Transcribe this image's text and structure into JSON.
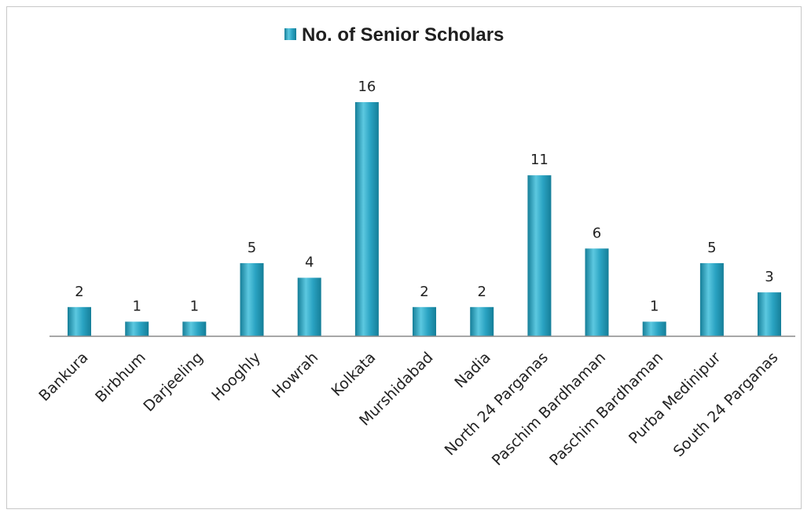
{
  "chart_data": {
    "type": "bar",
    "legend": {
      "label": "No. of Senior Scholars",
      "placement": "top"
    },
    "categories": [
      "Bankura",
      "Birbhum",
      "Darjeeling",
      "Hooghly",
      "Howrah",
      "Kolkata",
      "Murshidabad",
      "Nadia",
      "North 24 Parganas",
      "Paschim Bardhaman",
      "Paschim Bardhaman",
      "Purba Medinipur",
      "South 24 Parganas"
    ],
    "series": [
      {
        "name": "No. of Senior Scholars",
        "values": [
          2,
          1,
          1,
          5,
          4,
          16,
          2,
          2,
          11,
          6,
          1,
          5,
          3
        ]
      }
    ],
    "ylim": [
      0,
      16
    ],
    "grid": false,
    "data_labels": true,
    "colors": {
      "bar_light": "#5cc8e0",
      "bar_mid": "#2aa3c2",
      "bar_dark": "#157e98",
      "axis": "#8a8a8a",
      "frame": "#c8c8c8"
    }
  }
}
